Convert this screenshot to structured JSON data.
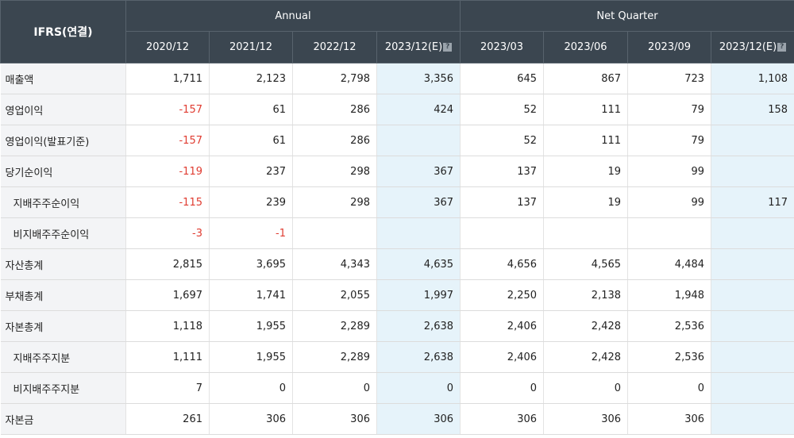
{
  "header": {
    "corner_label": "IFRS(연결)",
    "annual_label": "Annual",
    "quarter_label": "Net Quarter",
    "columns": [
      {
        "label": "2020/12",
        "est": false
      },
      {
        "label": "2021/12",
        "est": false
      },
      {
        "label": "2022/12",
        "est": false
      },
      {
        "label": "2023/12(E)",
        "est": true
      },
      {
        "label": "2023/03",
        "est": false
      },
      {
        "label": "2023/06",
        "est": false
      },
      {
        "label": "2023/09",
        "est": false
      },
      {
        "label": "2023/12(E)",
        "est": true
      }
    ]
  },
  "rows": [
    {
      "label": "매출액",
      "sub": false,
      "values": [
        "1,711",
        "2,123",
        "2,798",
        "3,356",
        "645",
        "867",
        "723",
        "1,108"
      ]
    },
    {
      "label": "영업이익",
      "sub": false,
      "values": [
        "-157",
        "61",
        "286",
        "424",
        "52",
        "111",
        "79",
        "158"
      ]
    },
    {
      "label": "영업이익(발표기준)",
      "sub": false,
      "values": [
        "-157",
        "61",
        "286",
        "",
        "52",
        "111",
        "79",
        ""
      ]
    },
    {
      "label": "당기순이익",
      "sub": false,
      "values": [
        "-119",
        "237",
        "298",
        "367",
        "137",
        "19",
        "99",
        ""
      ]
    },
    {
      "label": "지배주주순이익",
      "sub": true,
      "values": [
        "-115",
        "239",
        "298",
        "367",
        "137",
        "19",
        "99",
        "117"
      ]
    },
    {
      "label": "비지배주주순이익",
      "sub": true,
      "values": [
        "-3",
        "-1",
        "",
        "",
        "",
        "",
        "",
        ""
      ]
    },
    {
      "label": "자산총계",
      "sub": false,
      "values": [
        "2,815",
        "3,695",
        "4,343",
        "4,635",
        "4,656",
        "4,565",
        "4,484",
        ""
      ]
    },
    {
      "label": "부채총계",
      "sub": false,
      "values": [
        "1,697",
        "1,741",
        "2,055",
        "1,997",
        "2,250",
        "2,138",
        "1,948",
        ""
      ]
    },
    {
      "label": "자본총계",
      "sub": false,
      "values": [
        "1,118",
        "1,955",
        "2,289",
        "2,638",
        "2,406",
        "2,428",
        "2,536",
        ""
      ]
    },
    {
      "label": "지배주주지분",
      "sub": true,
      "values": [
        "1,111",
        "1,955",
        "2,289",
        "2,638",
        "2,406",
        "2,428",
        "2,536",
        ""
      ]
    },
    {
      "label": "비지배주주지분",
      "sub": true,
      "values": [
        "7",
        "0",
        "0",
        "0",
        "0",
        "0",
        "0",
        ""
      ]
    },
    {
      "label": "자본금",
      "sub": false,
      "values": [
        "261",
        "306",
        "306",
        "306",
        "306",
        "306",
        "306",
        ""
      ]
    }
  ],
  "colors": {
    "header_bg": "#3b4650",
    "label_bg": "#f3f4f6",
    "estimate_bg": "#e6f3fa",
    "negative": "#e03c31"
  }
}
